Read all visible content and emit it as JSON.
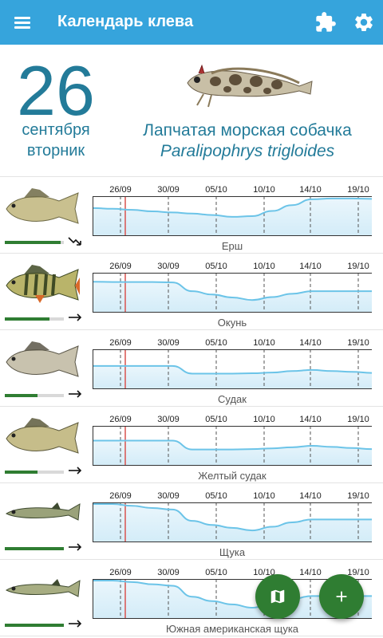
{
  "app": {
    "title": "Календарь клева"
  },
  "header": {
    "day": "26",
    "month": "сентября",
    "weekday": "вторник",
    "featured_fish_name": "Лапчатая морская собачка",
    "featured_fish_latin": "Paralipophrys trigloides"
  },
  "dates": [
    "26/09",
    "30/09",
    "05/10",
    "10/10",
    "14/10",
    "19/10"
  ],
  "colors": {
    "accent": "#36a4dc",
    "primary_text": "#237b99",
    "fab": "#2f7d32",
    "graph_line": "#6cc4e8",
    "today_marker": "#d9534f"
  },
  "fish": [
    {
      "name": "Ерш",
      "activity": 0.95,
      "trend": "down",
      "image": "ruffe-image",
      "curve": [
        0.28,
        0.3,
        0.33,
        0.37,
        0.4,
        0.43,
        0.47,
        0.52,
        0.5,
        0.36,
        0.2,
        0.04,
        0.02,
        0.02,
        0.03
      ]
    },
    {
      "name": "Окунь",
      "activity": 0.75,
      "trend": "flat",
      "image": "perch-image",
      "curve": [
        0.2,
        0.21,
        0.21,
        0.21,
        0.22,
        0.46,
        0.55,
        0.63,
        0.7,
        0.62,
        0.53,
        0.46,
        0.46,
        0.46,
        0.46
      ]
    },
    {
      "name": "Судак",
      "activity": 0.55,
      "trend": "flat",
      "image": "zander-image",
      "curve": [
        0.41,
        0.41,
        0.41,
        0.41,
        0.41,
        0.62,
        0.62,
        0.62,
        0.61,
        0.59,
        0.55,
        0.52,
        0.55,
        0.57,
        0.6
      ]
    },
    {
      "name": "Желтый судак",
      "activity": 0.55,
      "trend": "flat",
      "image": "walleye-image",
      "curve": [
        0.36,
        0.36,
        0.36,
        0.36,
        0.36,
        0.6,
        0.6,
        0.6,
        0.59,
        0.57,
        0.54,
        0.5,
        0.53,
        0.56,
        0.59
      ]
    },
    {
      "name": "Щука",
      "activity": 1.0,
      "trend": "flat",
      "image": "pike-image",
      "curve": [
        0.0,
        0.0,
        0.05,
        0.11,
        0.15,
        0.46,
        0.57,
        0.65,
        0.72,
        0.62,
        0.5,
        0.42,
        0.42,
        0.42,
        0.42
      ]
    },
    {
      "name": "Южная американская щука",
      "activity": 1.0,
      "trend": "flat",
      "image": "pickerel-image",
      "curve": [
        0.0,
        0.0,
        0.04,
        0.1,
        0.14,
        0.44,
        0.56,
        0.65,
        0.74,
        0.64,
        0.5,
        0.42,
        0.42,
        0.42,
        0.42
      ]
    }
  ]
}
